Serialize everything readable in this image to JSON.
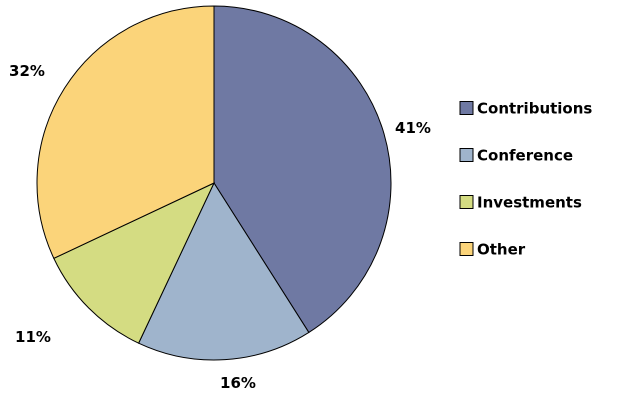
{
  "chart_data": {
    "type": "pie",
    "title": "",
    "categories": [
      "Contributions",
      "Conference",
      "Investments",
      "Other"
    ],
    "values": [
      41,
      16,
      11,
      32
    ],
    "value_labels": [
      "41%",
      "16%",
      "11%",
      "32%"
    ],
    "colors": [
      "#6f79a3",
      "#9fb4cc",
      "#d4dc82",
      "#fbd47a"
    ],
    "start_angle_deg": 0,
    "direction": "clockwise",
    "legend_position": "right"
  }
}
